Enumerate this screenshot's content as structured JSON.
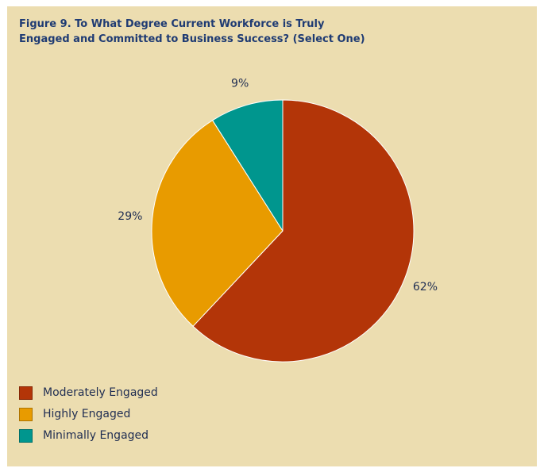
{
  "figure": {
    "title_line1": "Figure 9. To What Degree Current Workforce is Truly",
    "title_line2": "Engaged and Committed to Business Success? (Select One)"
  },
  "chart_data": {
    "type": "pie",
    "title": "Figure 9. To What Degree Current Workforce is Truly Engaged and Committed to Business Success? (Select One)",
    "start": "12 o'clock",
    "direction": "clockwise",
    "legend_position": "bottom-left",
    "slices": [
      {
        "name": "Moderately Engaged",
        "value": 62,
        "label": "62%",
        "color": "#b33508"
      },
      {
        "name": "Highly Engaged",
        "value": 29,
        "label": "29%",
        "color": "#e89b00"
      },
      {
        "name": "Minimally Engaged",
        "value": 9,
        "label": "9%",
        "color": "#00968e"
      }
    ]
  },
  "colors": {
    "background": "#ecddb0",
    "title": "#1f3b73",
    "text": "#1f2d52"
  }
}
